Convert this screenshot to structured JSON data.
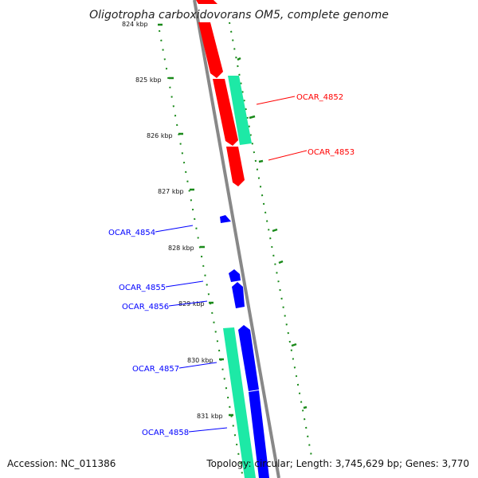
{
  "title": "Oligotropha carboxidovorans OM5, complete genome",
  "accession": "Accession: NC_011386",
  "summary": "Topology: circular; Length: 3,745,629 bp; Genes: 3,770",
  "colors": {
    "red_gene": "#ff0000",
    "blue_gene": "#0000ff",
    "teal_feature": "#1de9a6",
    "orange_gene": "#ff9900",
    "tick_green": "#1a8a1a",
    "backbone": "#888888"
  },
  "ticks": [
    {
      "label": "824 kbp"
    },
    {
      "label": "825 kbp"
    },
    {
      "label": "826 kbp"
    },
    {
      "label": "827 kbp"
    },
    {
      "label": "828 kbp"
    },
    {
      "label": "829 kbp"
    },
    {
      "label": "830 kbp"
    },
    {
      "label": "831 kbp"
    }
  ],
  "genes": [
    {
      "label": "OCAR_4852",
      "color": "#ff0000"
    },
    {
      "label": "OCAR_4853",
      "color": "#ff0000"
    },
    {
      "label": "OCAR_4854",
      "color": "#0000ff"
    },
    {
      "label": "OCAR_4855",
      "color": "#0000ff"
    },
    {
      "label": "OCAR_4856",
      "color": "#0000ff"
    },
    {
      "label": "OCAR_4857",
      "color": "#0000ff"
    },
    {
      "label": "OCAR_4858",
      "color": "#0000ff"
    }
  ]
}
